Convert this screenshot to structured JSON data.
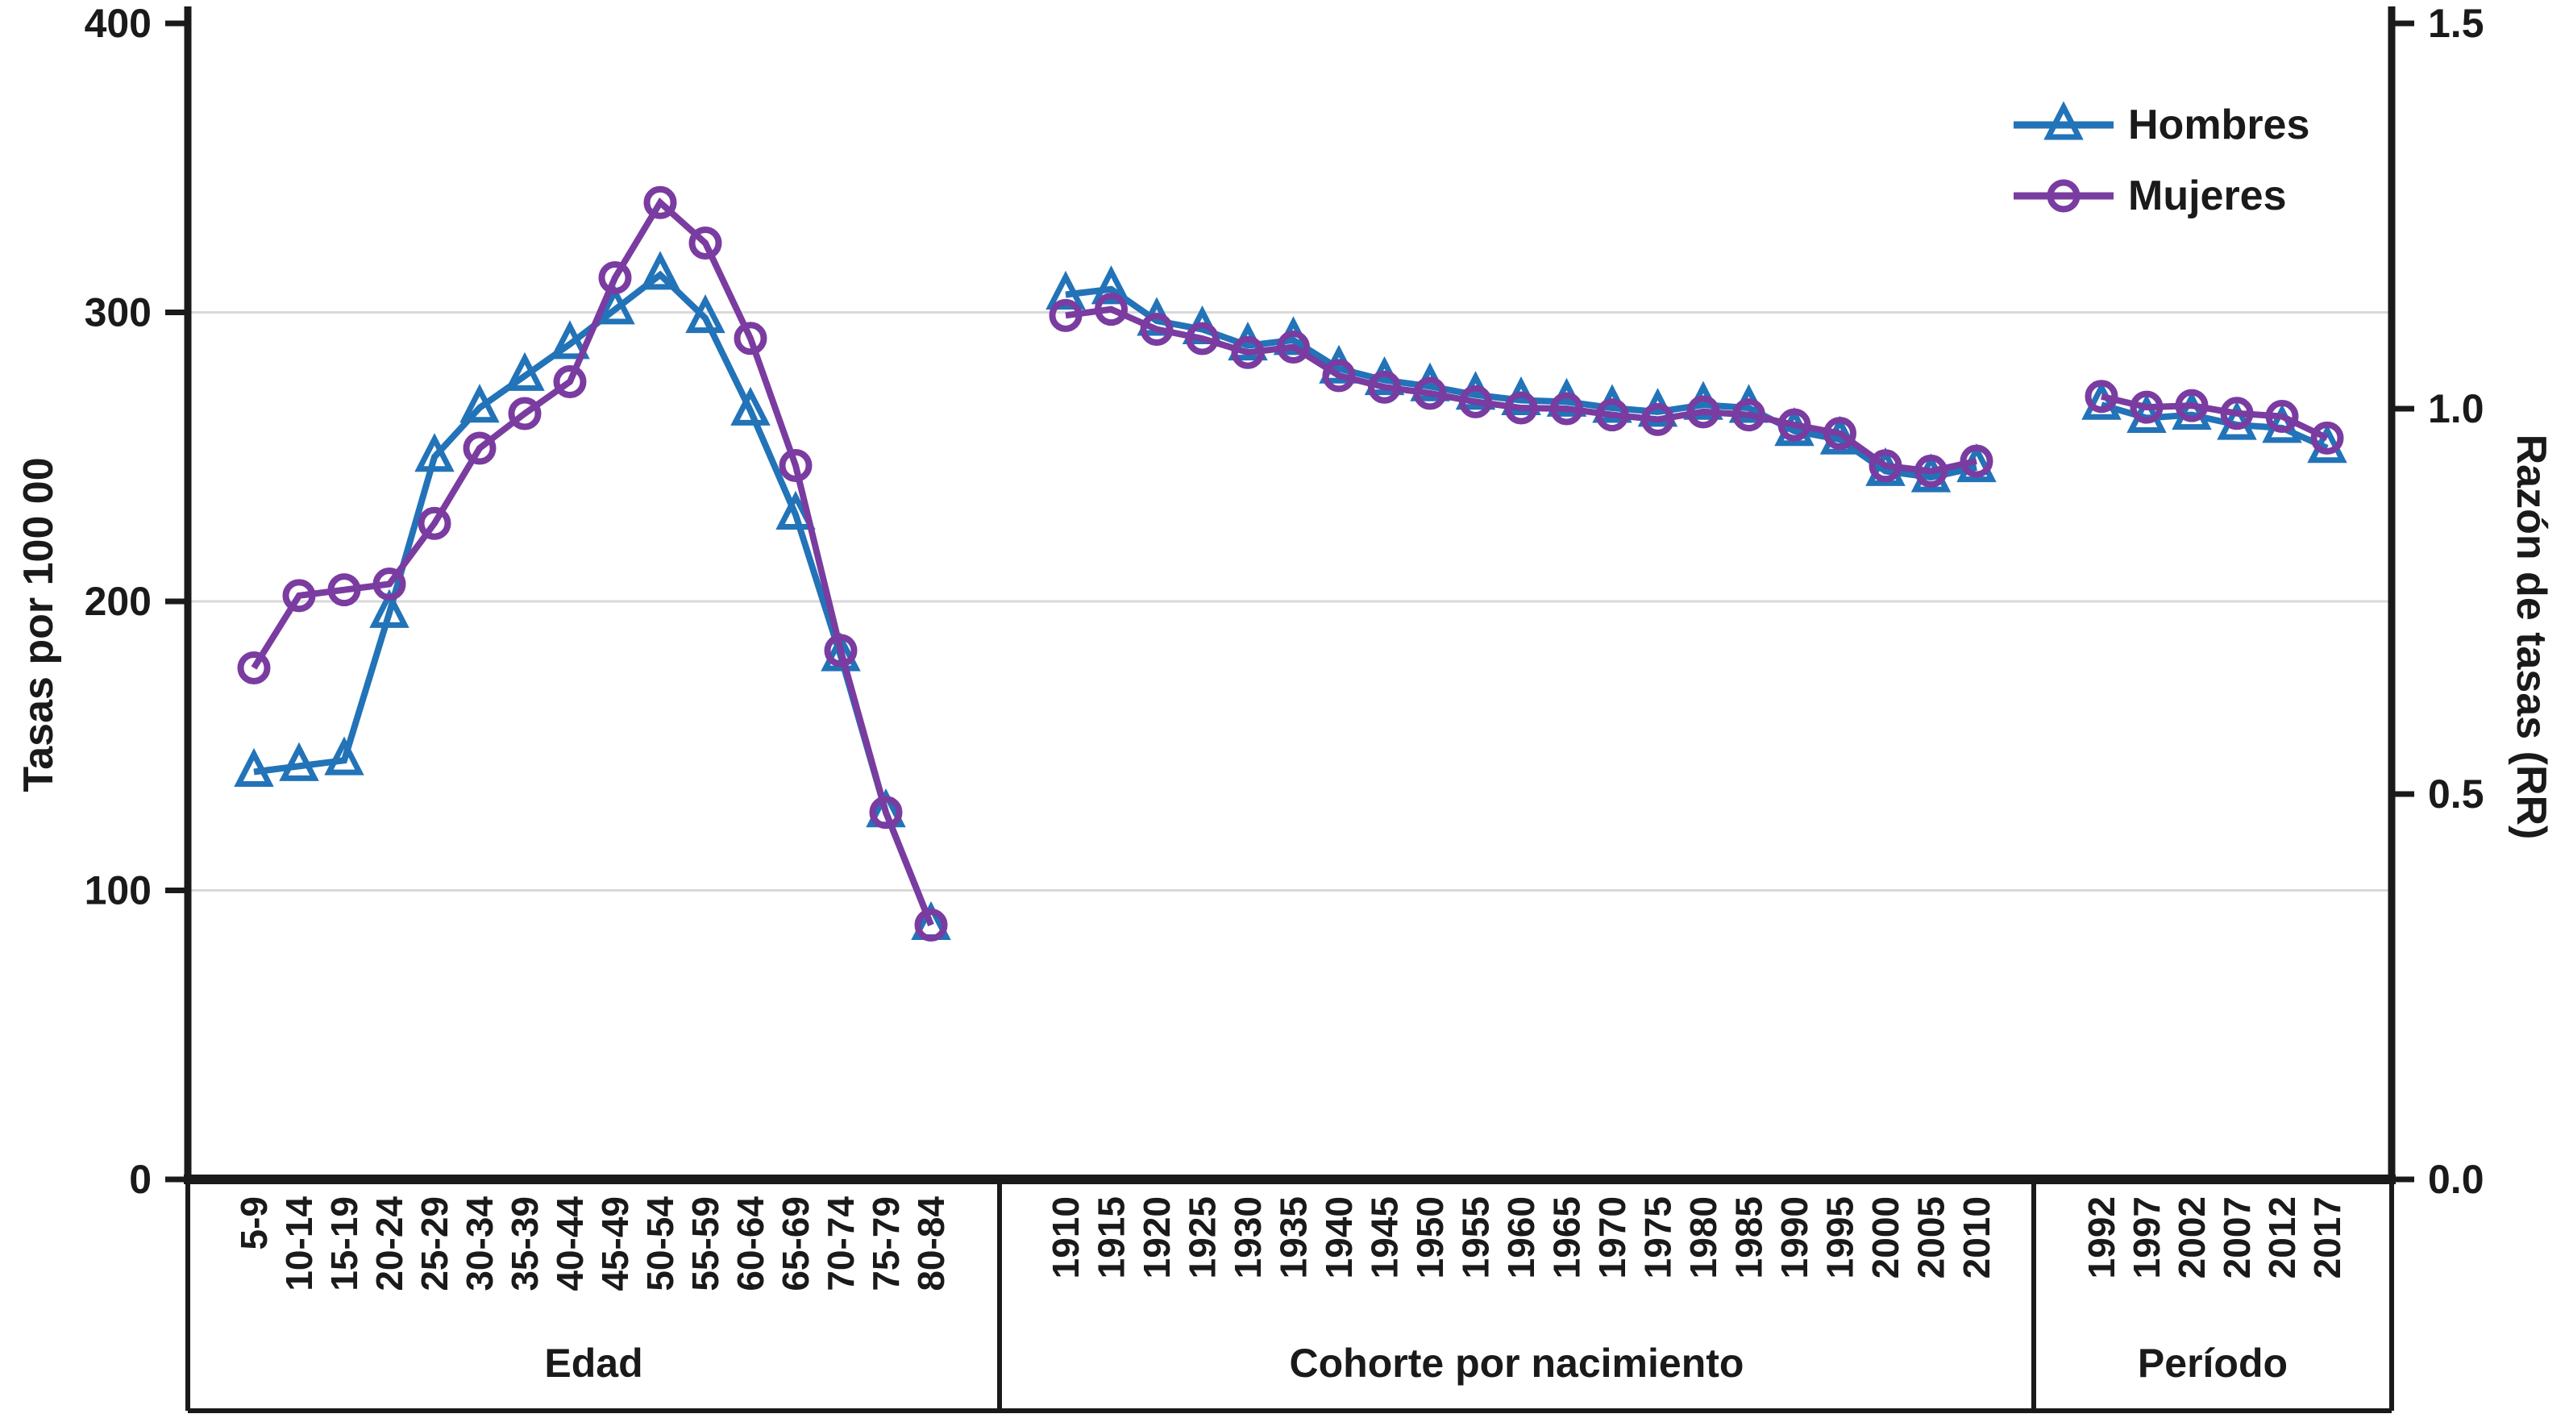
{
  "legend": {
    "items": [
      {
        "label": "Hombres",
        "color": "#2273b8",
        "marker": "triangle"
      },
      {
        "label": "Mujeres",
        "color": "#7a3ca0",
        "marker": "circle"
      }
    ]
  },
  "axes": {
    "left": {
      "title": "Tasas por 100 00",
      "ticks": [
        0,
        100,
        200,
        300,
        400
      ],
      "range": [
        0,
        400
      ],
      "gridline_values": [
        100,
        200,
        300
      ]
    },
    "right": {
      "title": "Razón de tasas (RR)",
      "ticks": [
        "0.0",
        "0.5",
        "1.0",
        "1.5"
      ],
      "range": [
        0,
        1.5
      ]
    }
  },
  "colors": {
    "hombres": "#2273b8",
    "mujeres": "#7a3ca0",
    "axis": "#1a1a1a",
    "gridline": "#d9d9d9"
  },
  "chart_data": {
    "type": "line",
    "title": "",
    "legend_position": "top-right",
    "grid": "horizontal at 100, 200, 300 (left scale)",
    "left_ylabel": "Tasas por 100 00",
    "right_ylabel": "Razón de tasas (RR)",
    "left_ylim": [
      0,
      400
    ],
    "right_ylim": [
      0,
      1.5
    ],
    "panels": [
      {
        "name": "Edad",
        "y_axis": "left",
        "x_categories": [
          "5-9",
          "10-14",
          "15-19",
          "20-24",
          "25-29",
          "30-34",
          "35-39",
          "40-44",
          "45-49",
          "50-54",
          "55-59",
          "60-64",
          "65-69",
          "70-74",
          "75-79",
          "80-84"
        ],
        "series": [
          {
            "name": "Hombres",
            "values": [
              141,
              143,
              145,
              196,
              250,
              267,
              278,
              289,
              301,
              313,
              298,
              266,
              230,
              181,
              127,
              88
            ]
          },
          {
            "name": "Mujeres",
            "values": [
              177,
              202,
              204,
              206,
              227,
              253,
              265,
              276,
              312,
              338,
              324,
              291,
              247,
              183,
              127,
              88
            ]
          }
        ]
      },
      {
        "name": "Cohorte por nacimiento",
        "y_axis": "right",
        "x_categories": [
          "1910",
          "1915",
          "1920",
          "1925",
          "1930",
          "1935",
          "1940",
          "1945",
          "1950",
          "1955",
          "1960",
          "1965",
          "1970",
          "1975",
          "1980",
          "1985",
          "1990",
          "1995",
          "2000",
          "2005",
          "2010"
        ],
        "series": [
          {
            "name": "Hombres",
            "values": [
              1.148,
              1.155,
              1.114,
              1.103,
              1.082,
              1.089,
              1.052,
              1.037,
              1.029,
              1.018,
              1.011,
              1.009,
              1.001,
              0.996,
              1.005,
              1.001,
              0.971,
              0.96,
              0.919,
              0.911,
              0.924
            ]
          },
          {
            "name": "Mujeres",
            "values": [
              1.121,
              1.129,
              1.103,
              1.091,
              1.073,
              1.08,
              1.043,
              1.028,
              1.02,
              1.009,
              1.001,
              1.0,
              0.992,
              0.986,
              0.996,
              0.992,
              0.979,
              0.968,
              0.926,
              0.919,
              0.932
            ]
          }
        ]
      },
      {
        "name": "Período",
        "y_axis": "right",
        "x_categories": [
          "1992",
          "1997",
          "2002",
          "2007",
          "2012",
          "2017"
        ],
        "series": [
          {
            "name": "Hombres",
            "values": [
              1.005,
              0.988,
              0.992,
              0.979,
              0.975,
              0.949
            ]
          },
          {
            "name": "Mujeres",
            "values": [
              1.016,
              1.002,
              1.004,
              0.994,
              0.99,
              0.962
            ]
          }
        ]
      }
    ]
  }
}
